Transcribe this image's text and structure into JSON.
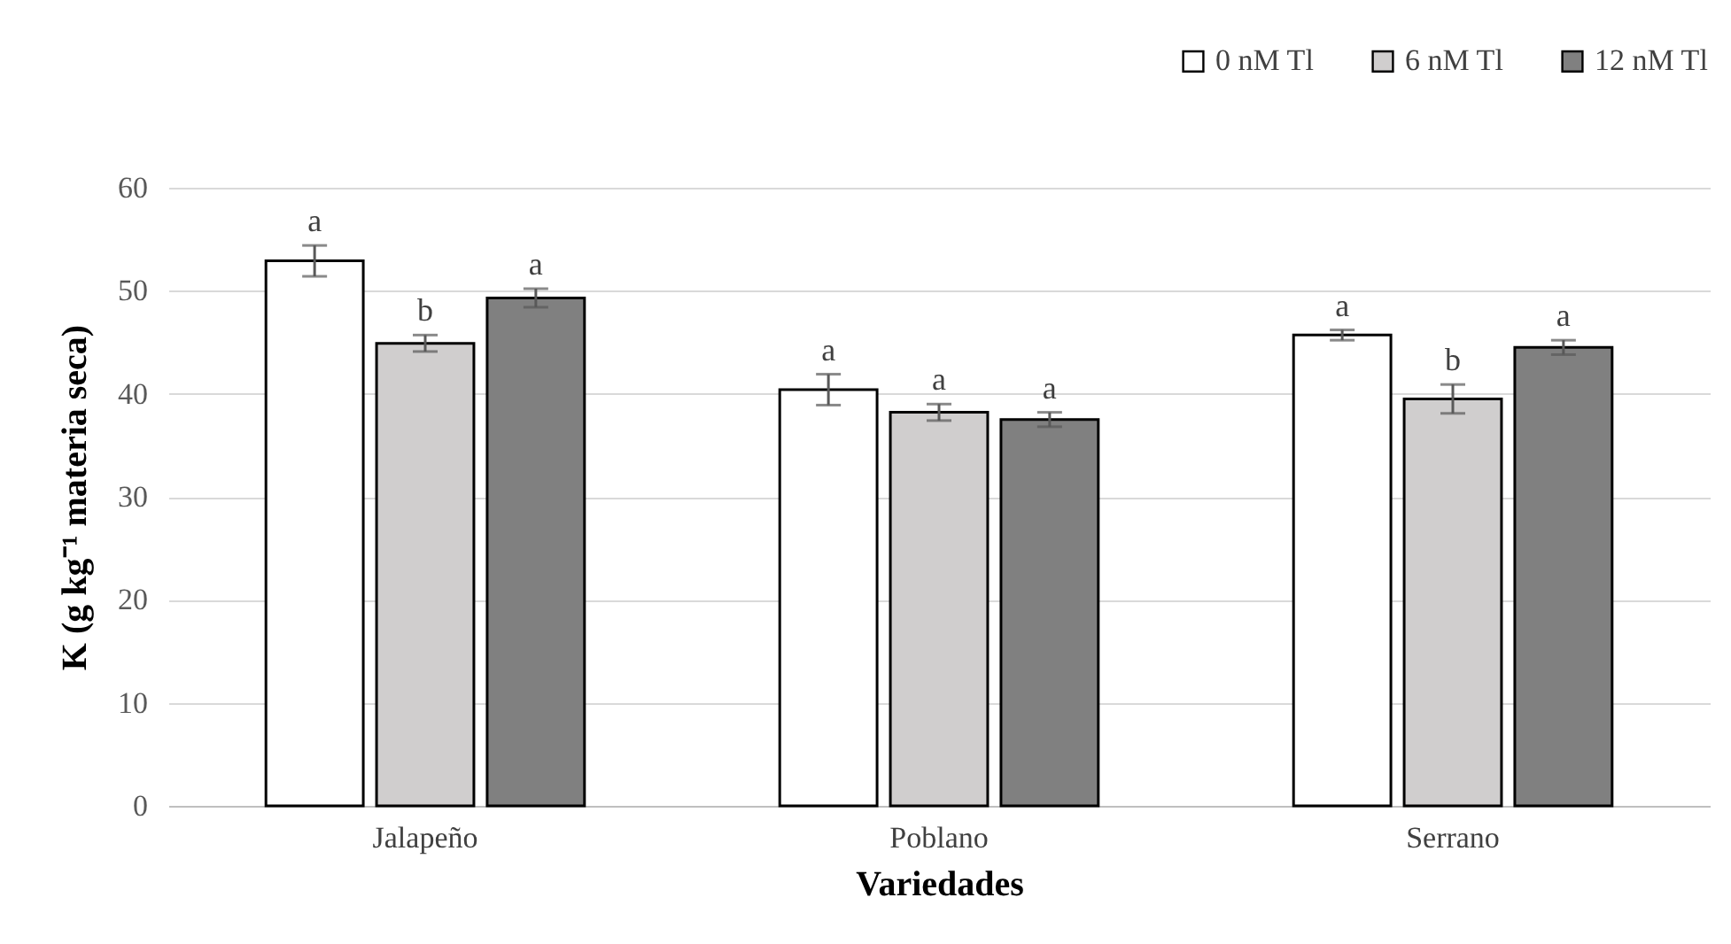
{
  "chart_data": {
    "type": "bar",
    "xlabel": "Variedades",
    "ylabel": "K (g kg⁻¹ materia seca)",
    "categories": [
      "Jalapeño",
      "Poblano",
      "Serrano"
    ],
    "series": [
      {
        "name": "0 nM Tl",
        "color": "#ffffff",
        "values": [
          52.9,
          40.4,
          45.7
        ],
        "errors": [
          1.5,
          1.5,
          0.5
        ],
        "value_labels": [
          "a",
          "a",
          "a"
        ]
      },
      {
        "name": "6 nM Tl",
        "color": "#d0cece",
        "values": [
          44.9,
          38.2,
          39.5
        ],
        "errors": [
          0.8,
          0.8,
          1.4
        ],
        "value_labels": [
          "b",
          "a",
          "b"
        ]
      },
      {
        "name": "12 nM Tl",
        "color": "#808080",
        "values": [
          49.3,
          37.5,
          44.5
        ],
        "errors": [
          0.9,
          0.7,
          0.7
        ],
        "value_labels": [
          "a",
          "a",
          "a"
        ]
      }
    ],
    "ylim": [
      0,
      60
    ],
    "yticks": [
      0,
      10,
      20,
      30,
      40,
      50,
      60
    ],
    "grid": "y",
    "legend": "top right"
  }
}
